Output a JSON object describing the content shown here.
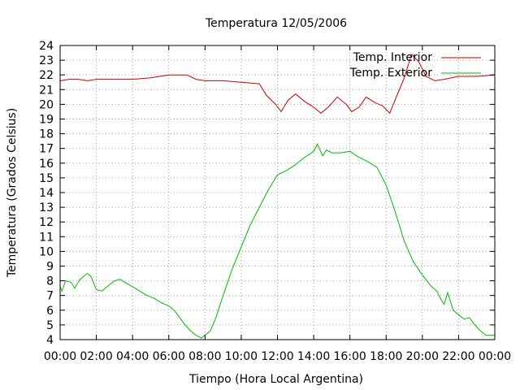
{
  "chart_data": {
    "type": "line",
    "title": "Temperatura 12/05/2006",
    "xlabel": "Tiempo (Hora Local Argentina)",
    "ylabel": "Temperatura (Grados Celsius)",
    "xlim": [
      0,
      24
    ],
    "ylim": [
      4,
      24
    ],
    "grid": true,
    "legend_position": "top-right",
    "x_ticks": [
      "00:00",
      "02:00",
      "04:00",
      "06:00",
      "08:00",
      "10:00",
      "12:00",
      "14:00",
      "16:00",
      "18:00",
      "20:00",
      "22:00",
      "00:00"
    ],
    "y_ticks": [
      "4",
      "5",
      "6",
      "7",
      "8",
      "9",
      "10",
      "11",
      "12",
      "13",
      "14",
      "15",
      "16",
      "17",
      "18",
      "19",
      "20",
      "21",
      "22",
      "23",
      "24"
    ],
    "series": [
      {
        "name": "Temp. Interior",
        "color": "#cc0000",
        "x": [
          0,
          0.5,
          1,
          1.5,
          2,
          3,
          4,
          5,
          6,
          7,
          7.5,
          8,
          9,
          10,
          11,
          11.4,
          11.9,
          12.2,
          12.6,
          13,
          13.5,
          14,
          14.4,
          14.8,
          15.3,
          15.8,
          16.1,
          16.5,
          16.9,
          17.4,
          17.8,
          18.2,
          18.6,
          19.0,
          19.4,
          19.8,
          20.2,
          20.7,
          21.2,
          22,
          23,
          24
        ],
        "y": [
          21.6,
          21.7,
          21.7,
          21.6,
          21.7,
          21.7,
          21.7,
          21.8,
          22.0,
          22.0,
          21.7,
          21.6,
          21.6,
          21.5,
          21.4,
          20.6,
          20.0,
          19.5,
          20.3,
          20.7,
          20.2,
          19.8,
          19.4,
          19.8,
          20.5,
          20.0,
          19.5,
          19.8,
          20.5,
          20.1,
          19.9,
          19.4,
          20.6,
          21.8,
          23.4,
          22.9,
          21.9,
          21.6,
          21.7,
          21.9,
          21.9,
          22.0
        ]
      },
      {
        "name": "Temp. Exterior",
        "color": "#00bb00",
        "x": [
          0,
          0.1,
          0.3,
          0.6,
          0.8,
          1.1,
          1.5,
          1.7,
          2.0,
          2.3,
          2.6,
          3.0,
          3.3,
          3.7,
          4.0,
          4.4,
          4.8,
          5.2,
          5.6,
          6.0,
          6.3,
          6.6,
          6.9,
          7.2,
          7.5,
          7.8,
          8.0,
          8.3,
          8.6,
          9.0,
          9.5,
          10.0,
          10.5,
          11.0,
          11.5,
          12.0,
          12.5,
          13.0,
          13.5,
          14.0,
          14.2,
          14.5,
          14.7,
          15.0,
          15.5,
          16.0,
          16.5,
          17.0,
          17.5,
          18.0,
          18.5,
          19.0,
          19.5,
          20.0,
          20.5,
          20.8,
          21.0,
          21.2,
          21.4,
          21.7,
          22.0,
          22.3,
          22.6,
          22.9,
          23.2,
          23.5,
          24.0
        ],
        "y": [
          7.6,
          7.3,
          8.0,
          7.9,
          7.5,
          8.1,
          8.5,
          8.3,
          7.4,
          7.3,
          7.6,
          8.0,
          8.1,
          7.8,
          7.6,
          7.3,
          7.0,
          6.8,
          6.5,
          6.3,
          6.0,
          5.5,
          5.0,
          4.6,
          4.3,
          4.1,
          4.3,
          4.6,
          5.5,
          7.0,
          8.8,
          10.3,
          11.8,
          13.0,
          14.2,
          15.2,
          15.5,
          15.9,
          16.4,
          16.8,
          17.3,
          16.5,
          16.9,
          16.7,
          16.7,
          16.8,
          16.4,
          16.1,
          15.7,
          14.5,
          12.7,
          10.7,
          9.3,
          8.4,
          7.6,
          7.3,
          6.8,
          6.4,
          7.2,
          6.0,
          5.7,
          5.4,
          5.5,
          5.0,
          4.6,
          4.3,
          4.3
        ]
      }
    ]
  }
}
